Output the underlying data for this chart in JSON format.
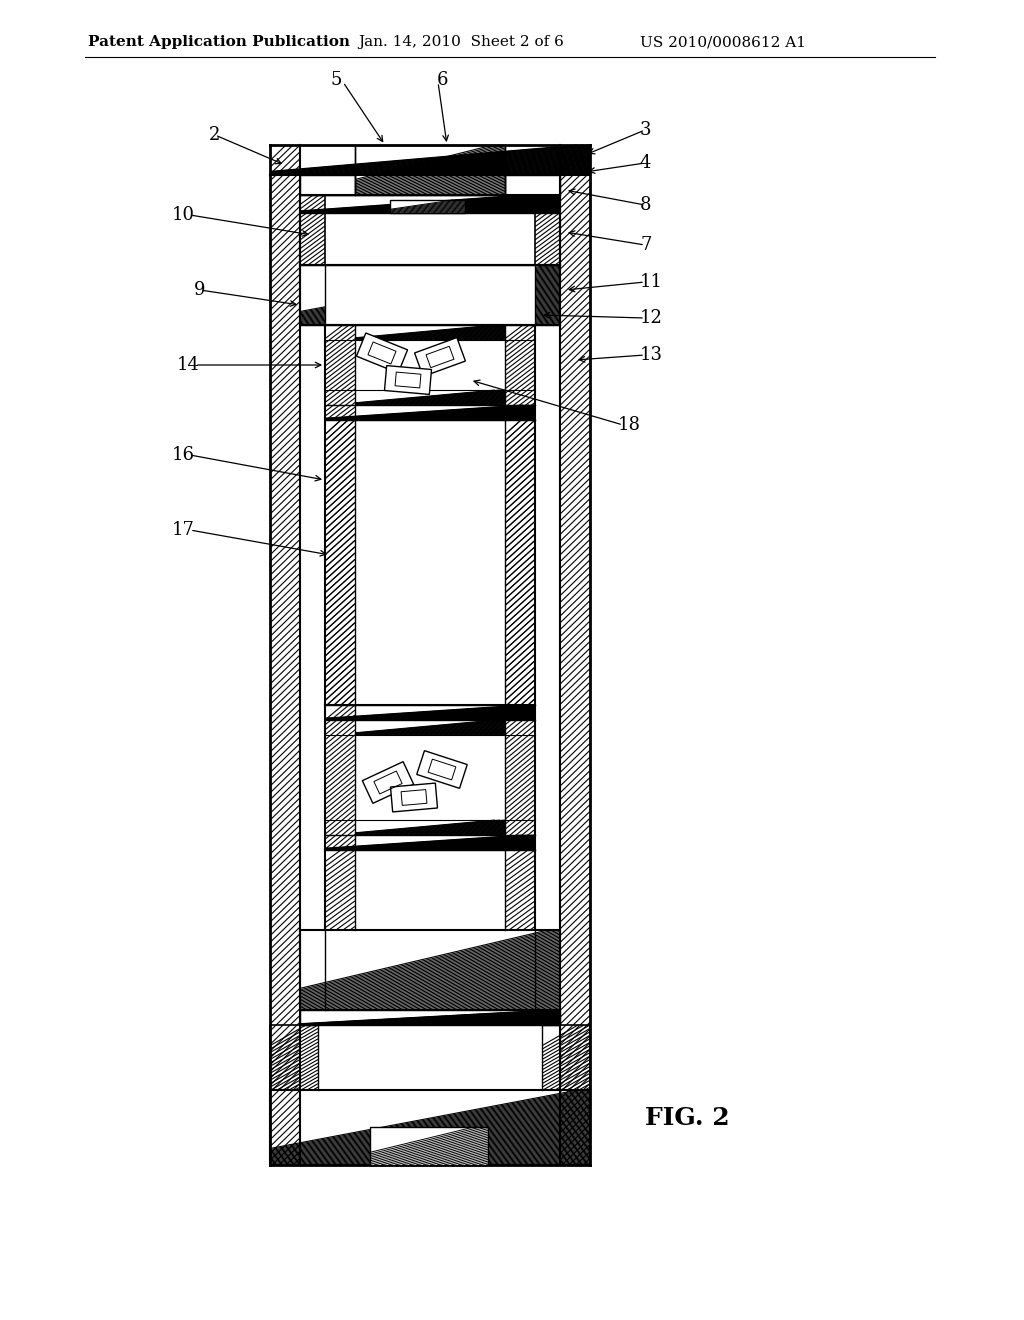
{
  "title_left": "Patent Application Publication",
  "title_mid": "Jan. 14, 2010  Sheet 2 of 6",
  "title_right": "US 2010/0008612 A1",
  "fig_label": "FIG. 2",
  "bg_color": "#ffffff",
  "line_color": "#000000",
  "header_fontsize": 11,
  "label_fontsize": 13,
  "fig_label_fontsize": 18,
  "OL": 270,
  "OR": 590,
  "OT": 1175,
  "OB": 155,
  "wall": 30
}
